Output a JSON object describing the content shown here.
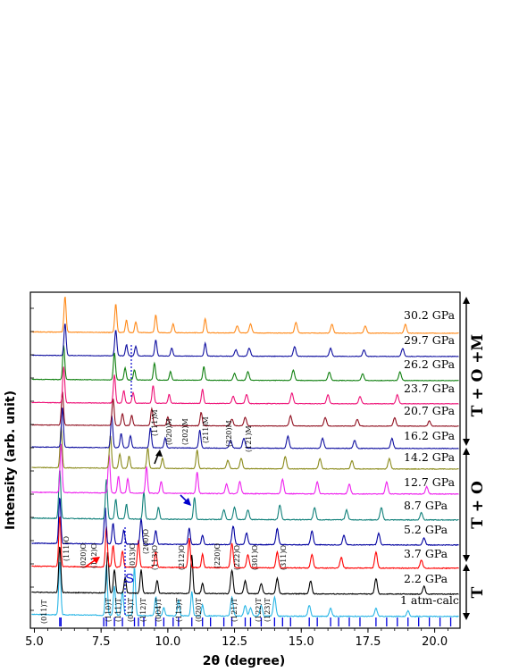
{
  "chart_data": {
    "type": "line",
    "title": "",
    "xlabel": "2θ (degree)",
    "ylabel": "Intensity (arb. unit)",
    "xlim": [
      4.85,
      20.95
    ],
    "xticks": [
      "5.0",
      "7.5",
      "10.0",
      "12.5",
      "15.0",
      "17.5",
      "20.0"
    ],
    "xtick_values": [
      5.0,
      7.5,
      10.0,
      12.5,
      15.0,
      17.5,
      20.0
    ],
    "series": [
      {
        "name": "1 atm-calc",
        "color": "#29b6e6",
        "peaks": [
          [
            5.95,
            1.0
          ],
          [
            7.7,
            0.95
          ],
          [
            8.0,
            0.55
          ],
          [
            8.3,
            0.45
          ],
          [
            8.75,
            0.9
          ],
          [
            9.55,
            0.35
          ],
          [
            9.85,
            0.15
          ],
          [
            10.4,
            0.3
          ],
          [
            10.9,
            0.45
          ],
          [
            11.3,
            0.2
          ],
          [
            12.4,
            0.35
          ],
          [
            12.9,
            0.2
          ],
          [
            13.1,
            0.15
          ],
          [
            13.5,
            0.2
          ],
          [
            14.0,
            0.35
          ],
          [
            15.3,
            0.2
          ],
          [
            16.1,
            0.15
          ],
          [
            17.8,
            0.15
          ],
          [
            19.0,
            0.1
          ]
        ]
      },
      {
        "name": "2.2 GPa",
        "color": "#000000",
        "peaks": [
          [
            5.95,
            0.9
          ],
          [
            7.75,
            0.8
          ],
          [
            8.0,
            0.45
          ],
          [
            8.4,
            0.3
          ],
          [
            9.0,
            0.45
          ],
          [
            9.6,
            0.25
          ],
          [
            10.9,
            0.75
          ],
          [
            11.3,
            0.2
          ],
          [
            12.4,
            0.45
          ],
          [
            12.9,
            0.25
          ],
          [
            13.5,
            0.2
          ],
          [
            14.1,
            0.3
          ],
          [
            15.35,
            0.25
          ],
          [
            17.8,
            0.3
          ],
          [
            19.6,
            0.15
          ]
        ]
      },
      {
        "name": "3.7 GPa",
        "color": "#ff0000",
        "peaks": [
          [
            5.95,
            0.95
          ],
          [
            7.7,
            0.75
          ],
          [
            7.95,
            0.4
          ],
          [
            8.3,
            0.3
          ],
          [
            8.9,
            0.5
          ],
          [
            9.55,
            0.3
          ],
          [
            10.8,
            0.55
          ],
          [
            11.3,
            0.25
          ],
          [
            12.4,
            0.45
          ],
          [
            13.0,
            0.25
          ],
          [
            14.1,
            0.3
          ],
          [
            15.4,
            0.25
          ],
          [
            16.5,
            0.2
          ],
          [
            17.8,
            0.3
          ],
          [
            19.5,
            0.15
          ]
        ]
      },
      {
        "name": "5.2 GPa",
        "color": "#0000a0",
        "peaks": [
          [
            5.95,
            1.0
          ],
          [
            7.65,
            0.8
          ],
          [
            7.95,
            0.45
          ],
          [
            8.35,
            0.3
          ],
          [
            9.0,
            0.55
          ],
          [
            9.55,
            0.3
          ],
          [
            10.8,
            0.35
          ],
          [
            11.3,
            0.2
          ],
          [
            12.45,
            0.4
          ],
          [
            12.95,
            0.25
          ],
          [
            14.1,
            0.35
          ],
          [
            15.4,
            0.3
          ],
          [
            16.6,
            0.2
          ],
          [
            17.9,
            0.25
          ],
          [
            19.6,
            0.15
          ]
        ]
      },
      {
        "name": "8.7 GPa",
        "color": "#10807a",
        "peaks": [
          [
            5.95,
            1.0
          ],
          [
            7.7,
            0.8
          ],
          [
            8.05,
            0.4
          ],
          [
            8.45,
            0.3
          ],
          [
            9.1,
            0.55
          ],
          [
            9.65,
            0.25
          ],
          [
            11.0,
            0.45
          ],
          [
            12.1,
            0.2
          ],
          [
            12.5,
            0.25
          ],
          [
            13.0,
            0.2
          ],
          [
            14.2,
            0.3
          ],
          [
            15.5,
            0.25
          ],
          [
            16.7,
            0.2
          ],
          [
            18.0,
            0.25
          ],
          [
            19.5,
            0.15
          ]
        ]
      },
      {
        "name": "12.7 GPa",
        "color": "#ee22ee",
        "peaks": [
          [
            6.0,
            1.0
          ],
          [
            7.8,
            0.8
          ],
          [
            8.15,
            0.35
          ],
          [
            8.5,
            0.3
          ],
          [
            9.2,
            0.55
          ],
          [
            9.75,
            0.25
          ],
          [
            11.1,
            0.45
          ],
          [
            12.2,
            0.2
          ],
          [
            12.7,
            0.25
          ],
          [
            14.3,
            0.3
          ],
          [
            15.6,
            0.25
          ],
          [
            16.8,
            0.2
          ],
          [
            18.2,
            0.25
          ],
          [
            19.7,
            0.15
          ]
        ]
      },
      {
        "name": "14.2 GPa",
        "color": "#8a8a1a",
        "peaks": [
          [
            6.0,
            1.0
          ],
          [
            7.85,
            0.8
          ],
          [
            8.2,
            0.35
          ],
          [
            8.55,
            0.3
          ],
          [
            9.25,
            0.5
          ],
          [
            9.8,
            0.25
          ],
          [
            11.1,
            0.45
          ],
          [
            12.25,
            0.2
          ],
          [
            12.75,
            0.25
          ],
          [
            14.4,
            0.3
          ],
          [
            15.7,
            0.25
          ],
          [
            16.9,
            0.2
          ],
          [
            18.3,
            0.25
          ]
        ]
      },
      {
        "name": "16.2 GPa",
        "color": "#1010a0",
        "peaks": [
          [
            6.05,
            1.0
          ],
          [
            7.9,
            0.8
          ],
          [
            8.25,
            0.35
          ],
          [
            8.6,
            0.3
          ],
          [
            9.35,
            0.5
          ],
          [
            9.9,
            0.25
          ],
          [
            11.2,
            0.45
          ],
          [
            12.35,
            0.2
          ],
          [
            12.85,
            0.25
          ],
          [
            14.5,
            0.3
          ],
          [
            15.8,
            0.25
          ],
          [
            17.0,
            0.2
          ],
          [
            18.4,
            0.25
          ]
        ]
      },
      {
        "name": "20.7 GPa",
        "color": "#901020",
        "peaks": [
          [
            6.05,
            1.0
          ],
          [
            7.95,
            0.8
          ],
          [
            8.3,
            0.35
          ],
          [
            8.65,
            0.3
          ],
          [
            9.4,
            0.5
          ],
          [
            10.0,
            0.25
          ],
          [
            11.25,
            0.4
          ],
          [
            12.4,
            0.2
          ],
          [
            12.9,
            0.25
          ],
          [
            14.6,
            0.3
          ],
          [
            15.9,
            0.25
          ],
          [
            17.1,
            0.2
          ],
          [
            18.5,
            0.25
          ],
          [
            19.8,
            0.15
          ]
        ]
      },
      {
        "name": "23.7 GPa",
        "color": "#ee1177",
        "peaks": [
          [
            6.1,
            1.0
          ],
          [
            8.0,
            0.8
          ],
          [
            8.35,
            0.35
          ],
          [
            8.7,
            0.3
          ],
          [
            9.45,
            0.5
          ],
          [
            10.05,
            0.25
          ],
          [
            11.3,
            0.4
          ],
          [
            12.45,
            0.2
          ],
          [
            12.95,
            0.25
          ],
          [
            14.65,
            0.3
          ],
          [
            16.0,
            0.25
          ],
          [
            17.2,
            0.2
          ],
          [
            18.6,
            0.25
          ]
        ]
      },
      {
        "name": "26.2 GPa",
        "color": "#108010",
        "peaks": [
          [
            6.1,
            1.0
          ],
          [
            8.0,
            0.8
          ],
          [
            8.4,
            0.35
          ],
          [
            8.75,
            0.3
          ],
          [
            9.5,
            0.5
          ],
          [
            10.1,
            0.25
          ],
          [
            11.35,
            0.4
          ],
          [
            12.5,
            0.2
          ],
          [
            13.0,
            0.25
          ],
          [
            14.7,
            0.3
          ],
          [
            16.05,
            0.25
          ],
          [
            17.3,
            0.2
          ],
          [
            18.7,
            0.25
          ]
        ]
      },
      {
        "name": "29.7 GPa",
        "color": "#1010a0",
        "peaks": [
          [
            6.15,
            1.0
          ],
          [
            8.05,
            0.8
          ],
          [
            8.45,
            0.35
          ],
          [
            8.8,
            0.3
          ],
          [
            9.55,
            0.5
          ],
          [
            10.15,
            0.25
          ],
          [
            11.4,
            0.4
          ],
          [
            12.55,
            0.2
          ],
          [
            13.05,
            0.25
          ],
          [
            14.75,
            0.3
          ],
          [
            16.1,
            0.25
          ],
          [
            17.35,
            0.2
          ],
          [
            18.8,
            0.25
          ]
        ]
      },
      {
        "name": "30.2 GPa",
        "color": "#ff8a1a",
        "peaks": [
          [
            6.15,
            1.0
          ],
          [
            8.05,
            0.8
          ],
          [
            8.45,
            0.35
          ],
          [
            8.8,
            0.3
          ],
          [
            9.55,
            0.5
          ],
          [
            10.2,
            0.25
          ],
          [
            11.4,
            0.4
          ],
          [
            12.6,
            0.2
          ],
          [
            13.1,
            0.25
          ],
          [
            14.8,
            0.3
          ],
          [
            16.15,
            0.25
          ],
          [
            17.4,
            0.2
          ],
          [
            18.9,
            0.25
          ]
        ]
      }
    ],
    "tick_marks": [
      5.95,
      6.0,
      7.6,
      7.7,
      8.0,
      8.3,
      8.75,
      8.9,
      9.1,
      9.55,
      9.85,
      10.2,
      10.4,
      10.9,
      11.3,
      11.6,
      12.1,
      12.4,
      12.9,
      13.1,
      13.5,
      14.0,
      14.3,
      14.6,
      15.3,
      15.6,
      16.1,
      16.4,
      16.8,
      17.2,
      17.8,
      18.2,
      18.6,
      19.0,
      19.4,
      19.8,
      20.2,
      20.6
    ],
    "reflection_labels": {
      "calc": [
        "(011)T",
        "(110)T",
        "(111)T",
        "(013)T",
        "(112)T",
        "(004)T",
        "(113)T",
        "(020)T",
        "(121)T",
        "(122)T",
        "(123)T"
      ],
      "orth": [
        "(111)O",
        "(020)O",
        "(112)O",
        "(013)O",
        "(200)O",
        "(113)O",
        "(212)O",
        "(220)O",
        "(222)O",
        "(301)O",
        "(311)O"
      ],
      "mono": [
        "(111)M",
        "(020)M",
        "(202)M",
        "(211)M",
        "(220)M",
        "(121)M"
      ]
    },
    "annotations": [
      "S"
    ],
    "phase_labels": [
      "T + O +M",
      "T + O",
      "T"
    ]
  }
}
